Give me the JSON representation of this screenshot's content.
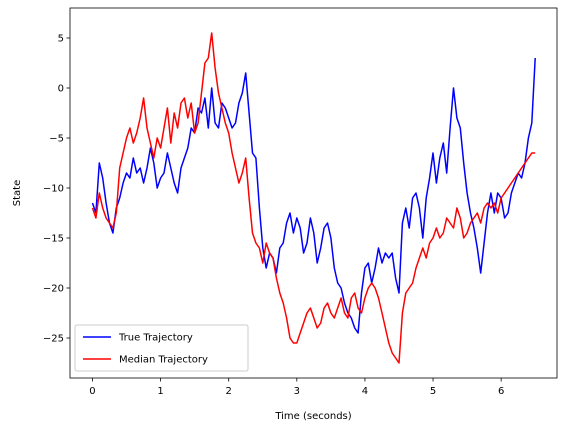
{
  "chart_data": {
    "type": "line",
    "title": "",
    "xlabel": "Time (seconds)",
    "ylabel": "State",
    "xlim": [
      -0.33,
      6.82
    ],
    "ylim": [
      -29,
      8
    ],
    "xticks": [
      0,
      1,
      2,
      3,
      4,
      5,
      6
    ],
    "yticks": [
      -25,
      -20,
      -15,
      -10,
      -5,
      0,
      5
    ],
    "grid": false,
    "legend_position": "lower-left",
    "series": [
      {
        "name": "True Trajectory",
        "color": "#0000ff",
        "x": [
          0.0,
          0.05,
          0.1,
          0.15,
          0.2,
          0.25,
          0.3,
          0.35,
          0.4,
          0.45,
          0.5,
          0.55,
          0.6,
          0.65,
          0.7,
          0.75,
          0.8,
          0.85,
          0.9,
          0.95,
          1.0,
          1.05,
          1.1,
          1.15,
          1.2,
          1.25,
          1.3,
          1.35,
          1.4,
          1.45,
          1.5,
          1.55,
          1.6,
          1.65,
          1.7,
          1.75,
          1.8,
          1.85,
          1.9,
          1.95,
          2.0,
          2.05,
          2.1,
          2.15,
          2.2,
          2.25,
          2.3,
          2.35,
          2.4,
          2.45,
          2.5,
          2.55,
          2.6,
          2.65,
          2.7,
          2.75,
          2.8,
          2.85,
          2.9,
          2.95,
          3.0,
          3.05,
          3.1,
          3.15,
          3.2,
          3.25,
          3.3,
          3.35,
          3.4,
          3.45,
          3.5,
          3.55,
          3.6,
          3.65,
          3.7,
          3.75,
          3.8,
          3.85,
          3.9,
          3.95,
          4.0,
          4.05,
          4.1,
          4.15,
          4.2,
          4.25,
          4.3,
          4.35,
          4.4,
          4.45,
          4.5,
          4.55,
          4.6,
          4.65,
          4.7,
          4.75,
          4.8,
          4.85,
          4.9,
          4.95,
          5.0,
          5.05,
          5.1,
          5.15,
          5.2,
          5.25,
          5.3,
          5.35,
          5.4,
          5.45,
          5.5,
          5.55,
          5.6,
          5.65,
          5.7,
          5.75,
          5.8,
          5.85,
          5.9,
          5.95,
          6.0,
          6.05,
          6.1,
          6.15,
          6.2,
          6.25,
          6.3,
          6.35,
          6.4,
          6.45,
          6.5
        ],
        "y": [
          -11.5,
          -12.5,
          -7.5,
          -9.0,
          -11.5,
          -13.5,
          -14.5,
          -12.0,
          -11.0,
          -9.5,
          -8.5,
          -9.0,
          -7.0,
          -8.5,
          -8.0,
          -9.5,
          -8.0,
          -6.0,
          -7.5,
          -10.0,
          -9.0,
          -8.5,
          -6.5,
          -8.0,
          -9.5,
          -10.5,
          -8.0,
          -7.0,
          -6.0,
          -4.0,
          -4.5,
          -2.0,
          -2.5,
          -1.0,
          -4.0,
          0.0,
          -3.5,
          -4.0,
          -1.5,
          -2.0,
          -3.0,
          -4.0,
          -3.5,
          -1.5,
          -0.5,
          1.5,
          -2.5,
          -6.5,
          -7.0,
          -12.0,
          -16.0,
          -18.0,
          -16.5,
          -17.0,
          -18.5,
          -16.0,
          -15.5,
          -13.5,
          -12.5,
          -14.5,
          -13.0,
          -14.0,
          -16.5,
          -15.5,
          -13.0,
          -14.5,
          -17.5,
          -16.0,
          -14.0,
          -13.5,
          -15.0,
          -18.0,
          -19.5,
          -20.0,
          -21.5,
          -22.5,
          -23.0,
          -24.0,
          -24.5,
          -20.5,
          -18.0,
          -17.5,
          -19.5,
          -18.0,
          -16.0,
          -17.5,
          -16.5,
          -17.0,
          -16.5,
          -19.0,
          -20.5,
          -13.5,
          -12.0,
          -14.0,
          -11.0,
          -10.5,
          -12.0,
          -15.0,
          -11.0,
          -9.0,
          -6.5,
          -9.5,
          -7.0,
          -5.5,
          -8.5,
          -4.0,
          0.0,
          -3.0,
          -4.0,
          -7.5,
          -10.5,
          -12.5,
          -14.0,
          -16.0,
          -18.5,
          -15.5,
          -12.5,
          -10.5,
          -12.5,
          -10.5,
          -11.0,
          -13.0,
          -12.5,
          -10.5,
          -9.5,
          -8.5,
          -9.0,
          -7.5,
          -5.0,
          -3.5,
          3.0
        ]
      },
      {
        "name": "Median Trajectory",
        "color": "#ff0000",
        "x": [
          0.0,
          0.05,
          0.1,
          0.15,
          0.2,
          0.25,
          0.3,
          0.35,
          0.4,
          0.45,
          0.5,
          0.55,
          0.6,
          0.65,
          0.7,
          0.75,
          0.8,
          0.85,
          0.9,
          0.95,
          1.0,
          1.05,
          1.1,
          1.15,
          1.2,
          1.25,
          1.3,
          1.35,
          1.4,
          1.45,
          1.5,
          1.55,
          1.6,
          1.65,
          1.7,
          1.75,
          1.8,
          1.85,
          1.9,
          1.95,
          2.0,
          2.05,
          2.1,
          2.15,
          2.2,
          2.25,
          2.3,
          2.35,
          2.4,
          2.45,
          2.5,
          2.55,
          2.6,
          2.65,
          2.7,
          2.75,
          2.8,
          2.85,
          2.9,
          2.95,
          3.0,
          3.05,
          3.1,
          3.15,
          3.2,
          3.25,
          3.3,
          3.35,
          3.4,
          3.45,
          3.5,
          3.55,
          3.6,
          3.65,
          3.7,
          3.75,
          3.8,
          3.85,
          3.9,
          3.95,
          4.0,
          4.05,
          4.1,
          4.15,
          4.2,
          4.25,
          4.3,
          4.35,
          4.4,
          4.45,
          4.5,
          4.55,
          4.6,
          4.65,
          4.7,
          4.75,
          4.8,
          4.85,
          4.9,
          4.95,
          5.0,
          5.05,
          5.1,
          5.15,
          5.2,
          5.25,
          5.3,
          5.35,
          5.4,
          5.45,
          5.5,
          5.55,
          5.6,
          5.65,
          5.7,
          5.75,
          5.8,
          5.85,
          5.9,
          5.95,
          6.0,
          6.05,
          6.1,
          6.15,
          6.2,
          6.25,
          6.3,
          6.35,
          6.4,
          6.45,
          6.5
        ],
        "y": [
          -12.0,
          -13.0,
          -10.5,
          -12.0,
          -13.0,
          -13.5,
          -14.0,
          -12.5,
          -8.0,
          -6.5,
          -5.0,
          -4.0,
          -5.5,
          -4.5,
          -3.0,
          -1.0,
          -4.0,
          -5.5,
          -7.0,
          -5.0,
          -6.0,
          -4.0,
          -2.0,
          -5.5,
          -2.5,
          -4.0,
          -1.5,
          -1.0,
          -3.0,
          -1.5,
          -4.5,
          -3.5,
          -0.5,
          2.5,
          3.0,
          5.5,
          2.0,
          -0.5,
          -2.0,
          -3.5,
          -4.5,
          -6.5,
          -8.0,
          -9.5,
          -8.5,
          -7.0,
          -11.0,
          -14.5,
          -15.5,
          -16.0,
          -17.5,
          -15.5,
          -16.5,
          -17.0,
          -19.0,
          -20.5,
          -21.5,
          -23.0,
          -25.0,
          -25.5,
          -25.5,
          -24.5,
          -23.5,
          -22.5,
          -22.0,
          -23.0,
          -24.0,
          -23.5,
          -22.0,
          -21.5,
          -22.5,
          -23.0,
          -22.0,
          -21.0,
          -22.5,
          -23.0,
          -21.0,
          -20.5,
          -22.0,
          -22.5,
          -21.0,
          -20.0,
          -19.5,
          -20.0,
          -21.0,
          -22.5,
          -24.0,
          -25.5,
          -26.5,
          -27.0,
          -27.5,
          -22.5,
          -20.5,
          -20.0,
          -19.5,
          -18.0,
          -17.0,
          -16.0,
          -17.0,
          -15.5,
          -15.0,
          -14.0,
          -15.0,
          -14.5,
          -13.0,
          -13.5,
          -14.0,
          -12.0,
          -13.0,
          -15.0,
          -14.5,
          -13.5,
          -13.0,
          -12.5,
          -13.5,
          -12.0,
          -11.5,
          -12.0,
          -11.5,
          -12.5,
          -11.0,
          -10.5,
          -10.0,
          -9.5,
          -9.0,
          -8.5,
          -8.0,
          -7.5,
          -7.0,
          -6.5,
          -6.5
        ]
      }
    ]
  }
}
